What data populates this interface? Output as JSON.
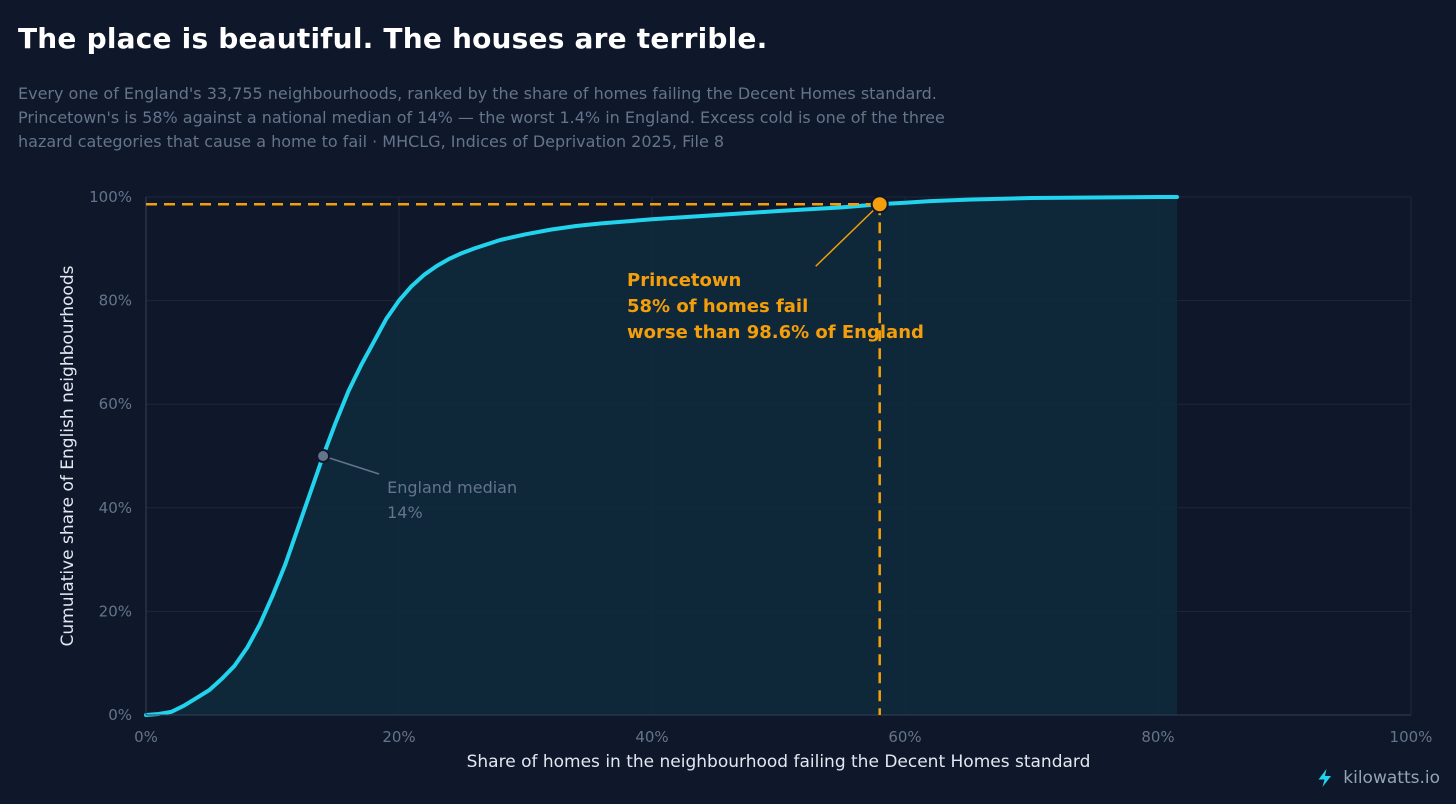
{
  "title": "The place is beautiful. The houses are terrible.",
  "subtitle": "Every one of England's 33,755 neighbourhoods, ranked by the share of homes failing the Decent Homes standard. Princetown's is 58% against a national median of 14% — the worst 1.4% in England. Excess cold is one of the three hazard categories that cause a home to fail · MHCLG, Indices of Deprivation 2025, File 8",
  "brand": {
    "name": "kilowatts.io",
    "icon": "lightning-bolt-icon"
  },
  "colors": {
    "background": "#0f172a",
    "curve": "#22d3ee",
    "area_fill": "#0e2a3c",
    "highlight": "#f59e0b",
    "median_marker": "#64748b",
    "grid": "#1e293b"
  },
  "chart_data": {
    "type": "line",
    "xlabel": "Share of homes in the neighbourhood failing the Decent Homes standard",
    "ylabel": "Cumulative share of English neighbourhoods",
    "xlim": [
      0,
      100
    ],
    "ylim": [
      0,
      100
    ],
    "x_ticks": [
      "0%",
      "20%",
      "40%",
      "60%",
      "80%",
      "100%"
    ],
    "y_ticks": [
      "0%",
      "20%",
      "40%",
      "60%",
      "80%",
      "100%"
    ],
    "grid": true,
    "area_filled": true,
    "series": [
      {
        "x": [
          0,
          1,
          2,
          3,
          4,
          5,
          6,
          7,
          8,
          9,
          10,
          11,
          12,
          13,
          14,
          15,
          16,
          17,
          18,
          19,
          20,
          21,
          22,
          23,
          24,
          25,
          26,
          28,
          30,
          32,
          34,
          36,
          40,
          45,
          50,
          55,
          58,
          60,
          62,
          65,
          70,
          75,
          80,
          81.5
        ],
        "y": [
          0,
          0.2,
          0.6,
          1.8,
          3.3,
          4.8,
          7,
          9.5,
          13,
          17.5,
          23,
          29,
          36,
          43,
          50,
          56.5,
          62.5,
          67.5,
          72,
          76.5,
          80,
          82.8,
          85,
          86.7,
          88.1,
          89.2,
          90.1,
          91.7,
          92.8,
          93.7,
          94.4,
          94.9,
          95.7,
          96.5,
          97.3,
          98,
          98.6,
          98.9,
          99.2,
          99.5,
          99.8,
          99.9,
          100,
          100
        ]
      }
    ],
    "annotations": [
      {
        "name": "median",
        "x": 14,
        "y": 50,
        "lines": [
          "England median",
          "14%"
        ]
      },
      {
        "name": "princetown",
        "x": 58,
        "y": 98.6,
        "lines": [
          "Princetown",
          "58% of homes fail",
          "worse than 98.6% of England"
        ]
      }
    ]
  }
}
